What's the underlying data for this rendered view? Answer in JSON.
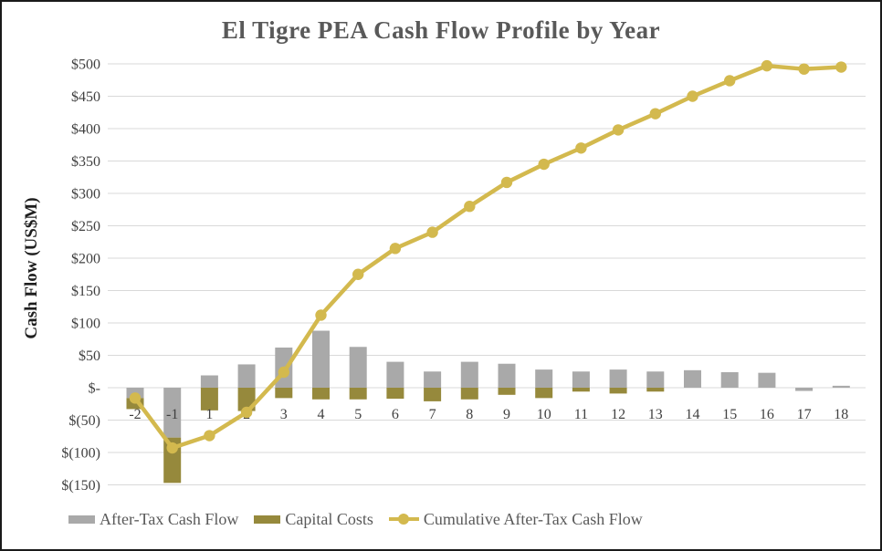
{
  "frame": {
    "background_color": "#ffffff",
    "border_color": "#1a1a1a"
  },
  "chart_data": {
    "type": "combo",
    "title": "El Tigre PEA Cash Flow Profile by Year",
    "xlabel": "",
    "ylabel": "Cash Flow (US$M)",
    "ylim": [
      -150,
      500
    ],
    "grid": true,
    "legend_position": "bottom",
    "categories": [
      "-2",
      "-1",
      "1",
      "2",
      "3",
      "4",
      "5",
      "6",
      "7",
      "8",
      "9",
      "10",
      "11",
      "12",
      "13",
      "14",
      "15",
      "16",
      "17",
      "18"
    ],
    "y_ticks": [
      {
        "value": 500,
        "label": "$500"
      },
      {
        "value": 450,
        "label": "$450"
      },
      {
        "value": 400,
        "label": "$400"
      },
      {
        "value": 350,
        "label": "$350"
      },
      {
        "value": 300,
        "label": "$300"
      },
      {
        "value": 250,
        "label": "$250"
      },
      {
        "value": 200,
        "label": "$200"
      },
      {
        "value": 150,
        "label": "$150"
      },
      {
        "value": 100,
        "label": "$100"
      },
      {
        "value": 50,
        "label": "$50"
      },
      {
        "value": 0,
        "label": "$-"
      },
      {
        "value": -50,
        "label": "$(50)"
      },
      {
        "value": -100,
        "label": "$(100)"
      },
      {
        "value": -150,
        "label": "$(150)"
      }
    ],
    "series": [
      {
        "name": "After-Tax Cash Flow",
        "type": "bar",
        "color": "#A9A9A9",
        "values": [
          -16,
          -77,
          19,
          36,
          62,
          88,
          63,
          40,
          25,
          40,
          37,
          28,
          25,
          28,
          25,
          27,
          24,
          23,
          -5,
          3
        ]
      },
      {
        "name": "Capital Costs",
        "type": "bar",
        "color": "#96893C",
        "stacking": "stacked-below-negative-aftertax",
        "values": [
          -17,
          -70,
          -35,
          -36,
          -16,
          -18,
          -18,
          -17,
          -21,
          -18,
          -11,
          -16,
          -6,
          -9,
          -6,
          0,
          0,
          0,
          0,
          0
        ]
      },
      {
        "name": "Cumulative After-Tax Cash Flow",
        "type": "line",
        "color": "#D3B94E",
        "marker": "circle",
        "values": [
          -16,
          -93,
          -74,
          -38,
          24,
          112,
          175,
          215,
          240,
          280,
          317,
          345,
          370,
          398,
          423,
          450,
          474,
          497,
          492,
          495
        ]
      }
    ],
    "gridline_color": "#D9D9D9",
    "title_color": "#595959",
    "tick_color": "#404040"
  }
}
